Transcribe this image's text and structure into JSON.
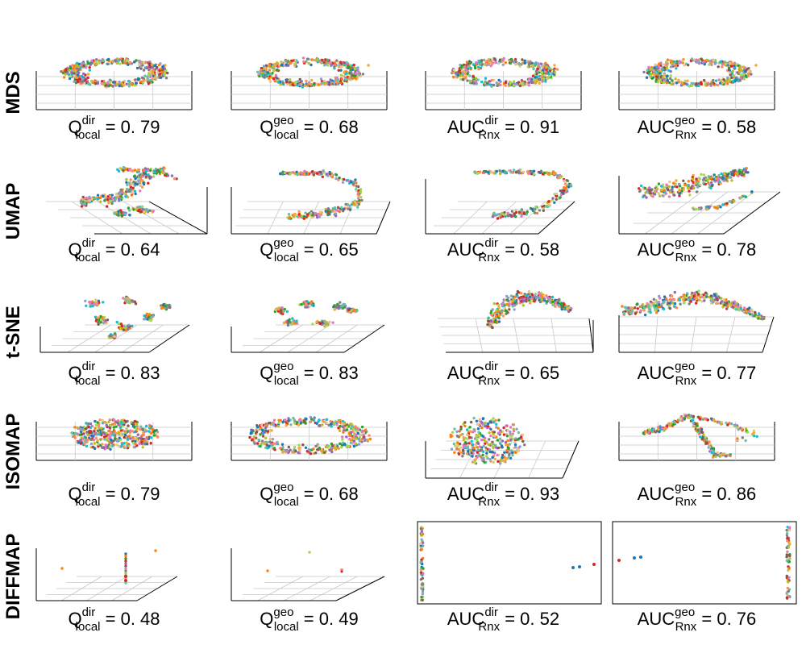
{
  "chart_data": {
    "type": "scatter",
    "rows": [
      "MDS",
      "UMAP",
      "t-SNE",
      "ISOMAP",
      "DIFFMAP"
    ],
    "column_metrics": [
      {
        "base": "Q",
        "sup": "dir",
        "sub": "local"
      },
      {
        "base": "Q",
        "sup": "geo",
        "sub": "local"
      },
      {
        "base": "AUC",
        "sup": "dir",
        "sub": "Rnx"
      },
      {
        "base": "AUC",
        "sup": "geo",
        "sub": "Rnx"
      }
    ],
    "scores": [
      [
        "0. 79",
        "0. 68",
        "0. 91",
        "0. 58"
      ],
      [
        "0. 64",
        "0. 65",
        "0. 58",
        "0. 78"
      ],
      [
        "0. 83",
        "0. 83",
        "0. 65",
        "0. 77"
      ],
      [
        "0. 79",
        "0. 68",
        "0. 93",
        "0. 86"
      ],
      [
        "0. 48",
        "0. 49",
        "0. 52",
        "0. 76"
      ]
    ],
    "point_colors": [
      "#1f77b4",
      "#ff7f0e",
      "#2ca02c",
      "#d62728",
      "#9467bd",
      "#8c564b",
      "#e377c2",
      "#7f7f7f",
      "#bcbd22",
      "#17becf",
      "#f4a636",
      "#a6d854",
      "#66c2a5",
      "#fc8d62",
      "#8da0cb",
      "#e5c494"
    ],
    "axis_color": "#000000",
    "grid_color": "#c8c8c8",
    "grid": true,
    "legend": "none"
  }
}
